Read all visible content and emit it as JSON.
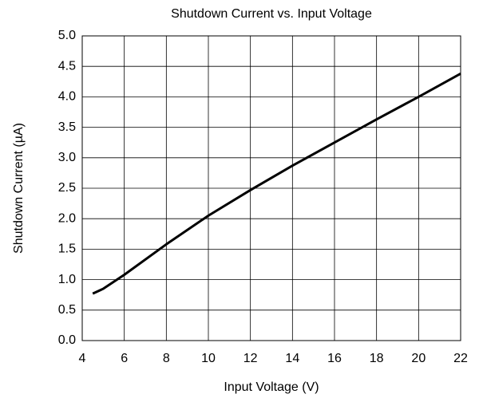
{
  "chart_data": {
    "type": "line",
    "title": "Shutdown Current vs. Input Voltage",
    "x_label": "Input Voltage (V)",
    "y_label": "Shutdown Current (µA)",
    "x": [
      4.5,
      5,
      6,
      8,
      10,
      12,
      14,
      16,
      18,
      20,
      22
    ],
    "series": [
      {
        "name": "Shutdown Current",
        "color": "#000000",
        "values": [
          0.77,
          0.85,
          1.08,
          1.58,
          2.05,
          2.47,
          2.87,
          3.25,
          3.63,
          4.0,
          4.38
        ]
      }
    ],
    "xlim": [
      4,
      22
    ],
    "xticks": [
      4,
      6,
      8,
      10,
      12,
      14,
      16,
      18,
      20,
      22
    ],
    "ylim": [
      0,
      5
    ],
    "yticks": [
      {
        "value": 0,
        "label": "0.0"
      },
      0.5,
      {
        "value": 1,
        "label": "1.0"
      },
      1.5,
      {
        "value": 2,
        "label": "2.0"
      },
      2.5,
      {
        "value": 3,
        "label": "3.0"
      },
      3.5,
      {
        "value": 4,
        "label": "4.0"
      },
      4.5,
      {
        "value": 5,
        "label": "5.0"
      }
    ],
    "grid": true
  }
}
